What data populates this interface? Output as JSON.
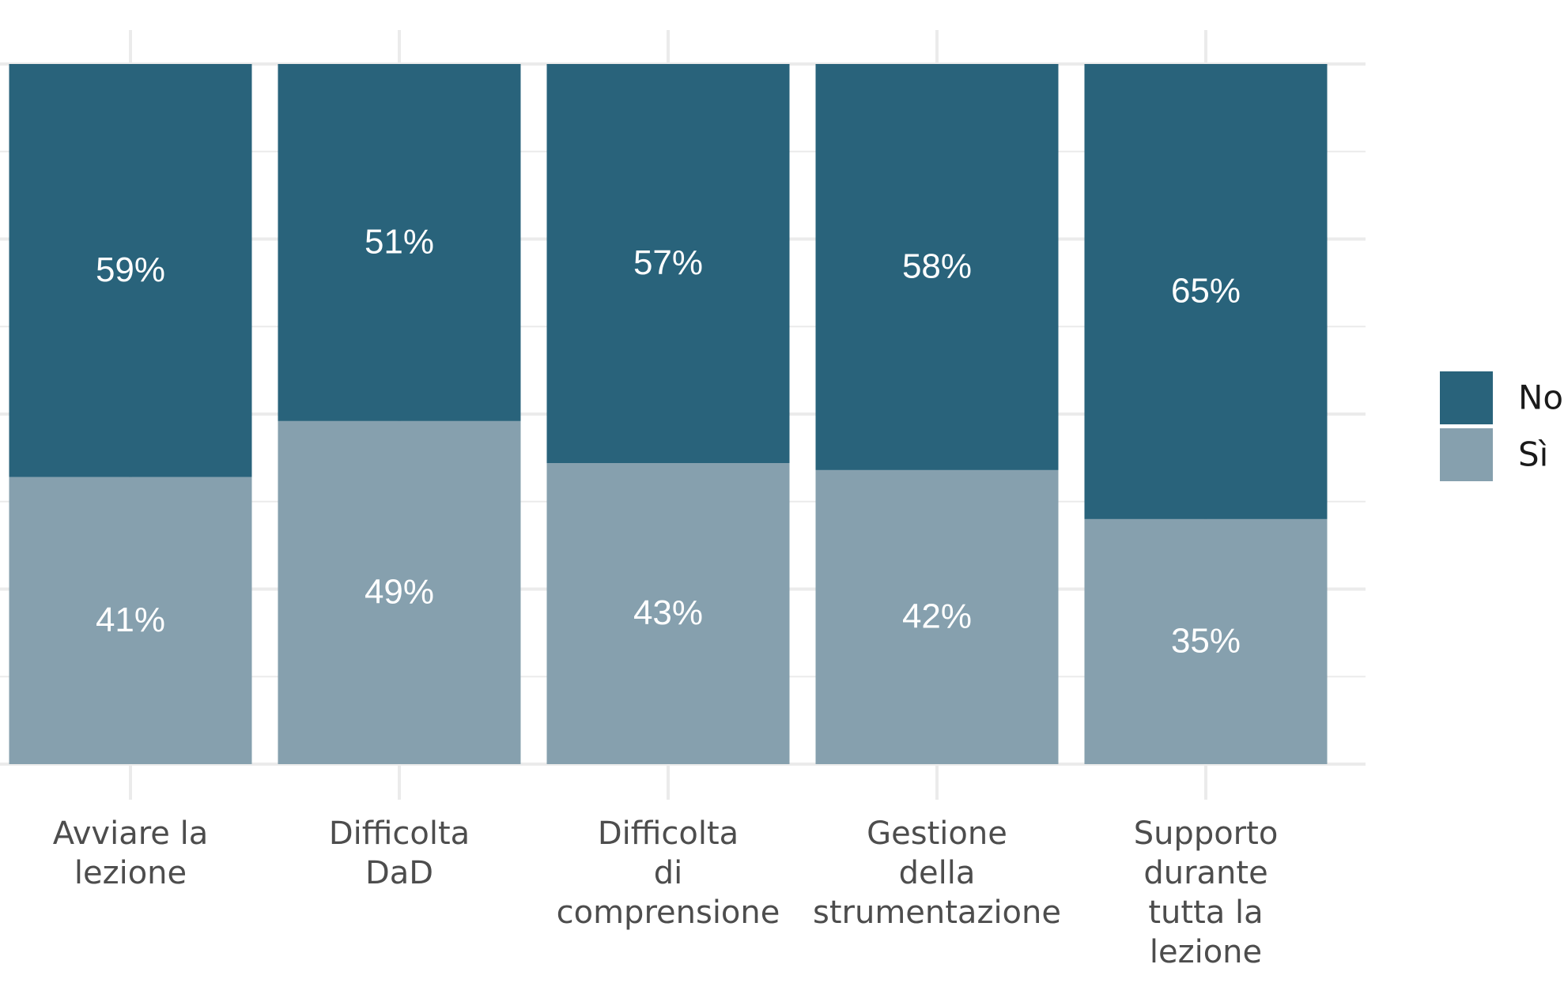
{
  "chart_data": {
    "type": "bar",
    "stacked": true,
    "categories": [
      [
        "Avviare la",
        "lezione"
      ],
      [
        "Difficolta",
        "DaD"
      ],
      [
        "Difficolta",
        "di",
        "comprensione"
      ],
      [
        "Gestione",
        "della",
        "strumentazione"
      ],
      [
        "Supporto",
        "durante",
        "tutta la",
        "lezione"
      ]
    ],
    "series": [
      {
        "name": "Sì",
        "values": [
          41,
          49,
          43,
          42,
          35
        ],
        "labels": [
          "41%",
          "49%",
          "43%",
          "42%",
          "35%"
        ],
        "color": "#86a0ae"
      },
      {
        "name": "No",
        "values": [
          59,
          51,
          57,
          58,
          65
        ],
        "labels": [
          "59%",
          "51%",
          "57%",
          "58%",
          "65%"
        ],
        "color": "#29637b"
      }
    ],
    "ylim": [
      0,
      100
    ],
    "grid": true,
    "legend": {
      "position": "right",
      "order": [
        "No",
        "Sì"
      ]
    }
  }
}
